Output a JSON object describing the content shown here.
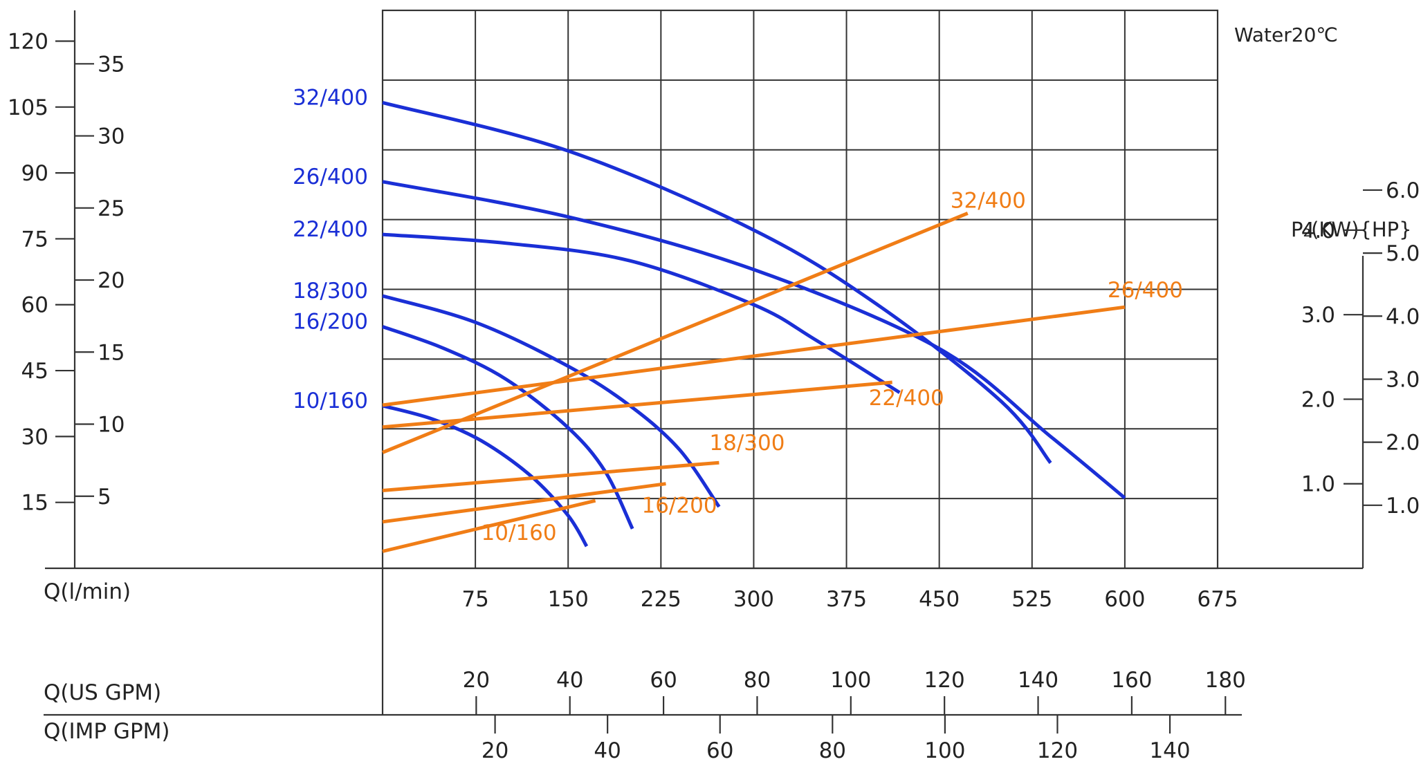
{
  "chart_data": {
    "type": "line",
    "annotation": "Water20℃",
    "x_axis": {
      "label": "Q(l/min)",
      "range": [
        0,
        675
      ],
      "ticks": [
        75,
        150,
        225,
        300,
        375,
        450,
        525,
        600,
        675
      ]
    },
    "secondary_x_axes": [
      {
        "label": "Q(US GPM)",
        "ticks": [
          20,
          40,
          60,
          80,
          100,
          120,
          140,
          160,
          180
        ]
      },
      {
        "label": "Q(IMP GPM)",
        "ticks": [
          20,
          40,
          60,
          80,
          100,
          120,
          140
        ]
      }
    ],
    "head_axis_left_outer": {
      "label": "",
      "range": [
        0,
        127
      ],
      "ticks": [
        15,
        30,
        45,
        60,
        75,
        90,
        105,
        120
      ]
    },
    "head_axis_left_inner": {
      "label": "",
      "ticks": [
        5,
        10,
        15,
        20,
        25,
        30,
        35
      ]
    },
    "power_axis_right": {
      "label": "P₂(KW){HP}",
      "kw_range": [
        0,
        6.6
      ],
      "kw_ticks": [
        "1.0",
        "2.0",
        "3.0",
        "4.0"
      ],
      "hp_ticks": [
        "1.0",
        "2.0",
        "3.0",
        "4.0",
        "5.0",
        "6.0"
      ]
    },
    "grid": true,
    "colors": {
      "head": "#1a2fd6",
      "power": "#f07d16",
      "grid": "#333333",
      "text": "#222222"
    },
    "head_series": [
      {
        "name": "32/400",
        "x": [
          0,
          150,
          300,
          400,
          500,
          540
        ],
        "y": [
          106,
          95,
          77,
          60,
          38,
          24
        ]
      },
      {
        "name": "26/400",
        "x": [
          0,
          150,
          300,
          450,
          540,
          600
        ],
        "y": [
          88,
          80,
          68,
          50,
          30,
          16
        ]
      },
      {
        "name": "22/400",
        "x": [
          0,
          100,
          200,
          300,
          350,
          418
        ],
        "y": [
          76,
          74,
          70,
          60,
          52,
          40
        ]
      },
      {
        "name": "18/300",
        "x": [
          0,
          75,
          150,
          200,
          240,
          272
        ],
        "y": [
          62,
          56,
          46,
          37,
          27,
          14
        ]
      },
      {
        "name": "16/200",
        "x": [
          0,
          50,
          100,
          150,
          180,
          202
        ],
        "y": [
          55,
          50,
          43,
          32,
          22,
          9
        ]
      },
      {
        "name": "10/160",
        "x": [
          0,
          40,
          80,
          120,
          150,
          165
        ],
        "y": [
          37,
          34,
          29,
          21,
          12,
          5
        ]
      }
    ],
    "power_series": [
      {
        "name": "32/400",
        "x": [
          0,
          473
        ],
        "y": [
          1.37,
          4.2
        ]
      },
      {
        "name": "26/400",
        "x": [
          0,
          600
        ],
        "y": [
          1.93,
          3.09
        ]
      },
      {
        "name": "22/400",
        "x": [
          0,
          412
        ],
        "y": [
          1.67,
          2.2
        ]
      },
      {
        "name": "18/300",
        "x": [
          0,
          272
        ],
        "y": [
          0.92,
          1.25
        ]
      },
      {
        "name": "16/200",
        "x": [
          0,
          229
        ],
        "y": [
          0.55,
          1.0
        ]
      },
      {
        "name": "10/160",
        "x": [
          0,
          172
        ],
        "y": [
          0.2,
          0.8
        ]
      }
    ]
  }
}
